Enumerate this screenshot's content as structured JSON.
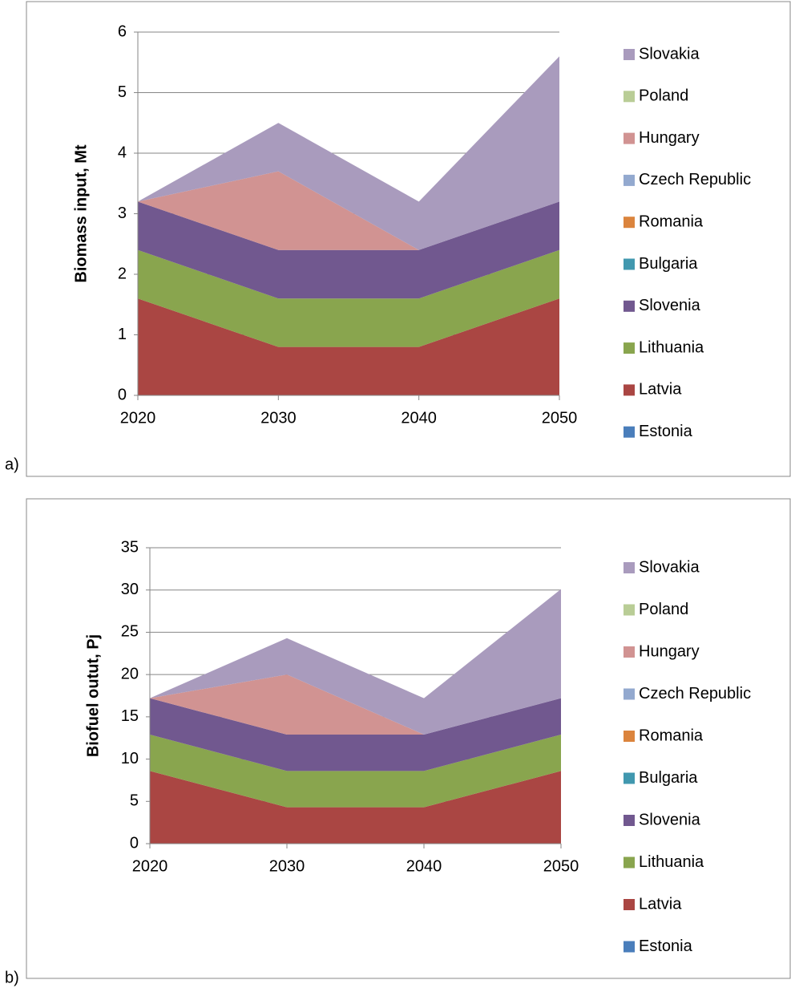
{
  "chart_data": [
    {
      "type": "stacked_area",
      "label": "a)",
      "y_label": "Biomass input, Mt",
      "categories": [
        "2020",
        "2030",
        "2040",
        "2050"
      ],
      "ylim": [
        0,
        6
      ],
      "yticks": [
        0,
        1,
        2,
        3,
        4,
        5,
        6
      ],
      "grid": true,
      "series": [
        {
          "name": "Estonia",
          "color": "#4a7ebb",
          "values": [
            0,
            0,
            0,
            0
          ]
        },
        {
          "name": "Latvia",
          "color": "#aa4643",
          "values": [
            1.6,
            0.8,
            0.8,
            1.6
          ]
        },
        {
          "name": "Lithuania",
          "color": "#89a54e",
          "values": [
            0.8,
            0.8,
            0.8,
            0.8
          ]
        },
        {
          "name": "Slovenia",
          "color": "#71588f",
          "values": [
            0.8,
            0.8,
            0.8,
            0.8
          ]
        },
        {
          "name": "Bulgaria",
          "color": "#4198af",
          "values": [
            0,
            0,
            0,
            0
          ]
        },
        {
          "name": "Romania",
          "color": "#db843d",
          "values": [
            0,
            0,
            0,
            0
          ]
        },
        {
          "name": "Czech Republic",
          "color": "#93a9cf",
          "values": [
            0,
            0,
            0,
            0
          ]
        },
        {
          "name": "Hungary",
          "color": "#d19392",
          "values": [
            0,
            1.3,
            0,
            0
          ]
        },
        {
          "name": "Poland",
          "color": "#b9cd96",
          "values": [
            0,
            0,
            0,
            0
          ]
        },
        {
          "name": "Slovakia",
          "color": "#a99bbd",
          "values": [
            0,
            0.8,
            0.8,
            2.4
          ]
        }
      ]
    },
    {
      "type": "stacked_area",
      "label": "b)",
      "y_label": "Biofuel outut, Pj",
      "categories": [
        "2020",
        "2030",
        "2040",
        "2050"
      ],
      "ylim": [
        0,
        35
      ],
      "yticks": [
        0,
        5,
        10,
        15,
        20,
        25,
        30,
        35
      ],
      "grid": true,
      "series": [
        {
          "name": "Estonia",
          "color": "#4a7ebb",
          "values": [
            0,
            0,
            0,
            0
          ]
        },
        {
          "name": "Latvia",
          "color": "#aa4643",
          "values": [
            8.6,
            4.3,
            4.3,
            8.6
          ]
        },
        {
          "name": "Lithuania",
          "color": "#89a54e",
          "values": [
            4.3,
            4.3,
            4.3,
            4.3
          ]
        },
        {
          "name": "Slovenia",
          "color": "#71588f",
          "values": [
            4.3,
            4.3,
            4.3,
            4.3
          ]
        },
        {
          "name": "Bulgaria",
          "color": "#4198af",
          "values": [
            0,
            0,
            0,
            0
          ]
        },
        {
          "name": "Romania",
          "color": "#db843d",
          "values": [
            0,
            0,
            0,
            0
          ]
        },
        {
          "name": "Czech Republic",
          "color": "#93a9cf",
          "values": [
            0,
            0,
            0,
            0
          ]
        },
        {
          "name": "Hungary",
          "color": "#d19392",
          "values": [
            0,
            7.1,
            0,
            0
          ]
        },
        {
          "name": "Poland",
          "color": "#b9cd96",
          "values": [
            0,
            0,
            0,
            0
          ]
        },
        {
          "name": "Slovakia",
          "color": "#a99bbd",
          "values": [
            0,
            4.3,
            4.3,
            12.9
          ]
        }
      ]
    }
  ]
}
